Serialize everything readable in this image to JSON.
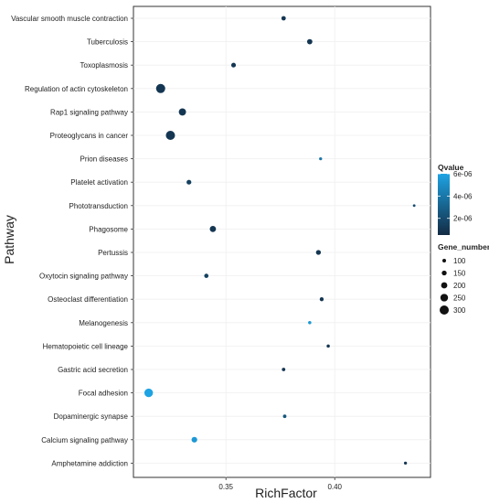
{
  "chart_data": {
    "type": "scatter",
    "title": "",
    "xlabel": "RichFactor",
    "ylabel": "Pathway",
    "xticks": [
      0.35,
      0.4
    ],
    "xtick_labels": [
      "0.35",
      "0.40"
    ],
    "xlim": [
      0.3075,
      0.444
    ],
    "grid": true,
    "categories": [
      "Vascular smooth muscle contraction",
      "Tuberculosis",
      "Toxoplasmosis",
      "Regulation of actin cytoskeleton",
      "Rap1 signaling pathway",
      "Proteoglycans in cancer",
      "Prion diseases",
      "Platelet activation",
      "Phototransduction",
      "Phagosome",
      "Pertussis",
      "Oxytocin signaling pathway",
      "Osteoclast differentiation",
      "Melanogenesis",
      "Hematopoietic cell lineage",
      "Gastric acid secretion",
      "Focal adhesion",
      "Dopaminergic synapse",
      "Calcium signaling pathway",
      "Amphetamine addiction"
    ],
    "points": [
      {
        "pathway": "Vascular smooth muscle contraction",
        "rich_factor": 0.3765,
        "gene_number": 130,
        "qvalue": 1e-06
      },
      {
        "pathway": "Tuberculosis",
        "rich_factor": 0.3885,
        "gene_number": 165,
        "qvalue": 1e-06
      },
      {
        "pathway": "Toxoplasmosis",
        "rich_factor": 0.3535,
        "gene_number": 140,
        "qvalue": 1e-06
      },
      {
        "pathway": "Regulation of actin cytoskeleton",
        "rich_factor": 0.32,
        "gene_number": 300,
        "qvalue": 1e-06
      },
      {
        "pathway": "Rap1 signaling pathway",
        "rich_factor": 0.33,
        "gene_number": 235,
        "qvalue": 1e-06
      },
      {
        "pathway": "Proteoglycans in cancer",
        "rich_factor": 0.3245,
        "gene_number": 300,
        "qvalue": 1e-06
      },
      {
        "pathway": "Prion diseases",
        "rich_factor": 0.3935,
        "gene_number": 70,
        "qvalue": 4e-06
      },
      {
        "pathway": "Platelet activation",
        "rich_factor": 0.333,
        "gene_number": 145,
        "qvalue": 1.5e-06
      },
      {
        "pathway": "Phototransduction",
        "rich_factor": 0.4365,
        "gene_number": 50,
        "qvalue": 2e-06
      },
      {
        "pathway": "Phagosome",
        "rich_factor": 0.344,
        "gene_number": 200,
        "qvalue": 1e-06
      },
      {
        "pathway": "Pertussis",
        "rich_factor": 0.3925,
        "gene_number": 150,
        "qvalue": 1e-06
      },
      {
        "pathway": "Oxytocin signaling pathway",
        "rich_factor": 0.341,
        "gene_number": 125,
        "qvalue": 1.5e-06
      },
      {
        "pathway": "Osteoclast differentiation",
        "rich_factor": 0.394,
        "gene_number": 110,
        "qvalue": 1e-06
      },
      {
        "pathway": "Melanogenesis",
        "rich_factor": 0.3885,
        "gene_number": 80,
        "qvalue": 5.5e-06
      },
      {
        "pathway": "Hematopoietic cell lineage",
        "rich_factor": 0.397,
        "gene_number": 80,
        "qvalue": 1e-06
      },
      {
        "pathway": "Gastric acid secretion",
        "rich_factor": 0.3765,
        "gene_number": 90,
        "qvalue": 1e-06
      },
      {
        "pathway": "Focal adhesion",
        "rich_factor": 0.3145,
        "gene_number": 280,
        "qvalue": 6e-06
      },
      {
        "pathway": "Dopaminergic synapse",
        "rich_factor": 0.377,
        "gene_number": 90,
        "qvalue": 2.5e-06
      },
      {
        "pathway": "Calcium signaling pathway",
        "rich_factor": 0.3355,
        "gene_number": 180,
        "qvalue": 5.5e-06
      },
      {
        "pathway": "Amphetamine addiction",
        "rich_factor": 0.4325,
        "gene_number": 70,
        "qvalue": 1e-06
      }
    ],
    "color_legend": {
      "title": "Qvalue",
      "tick_labels": [
        "6e-06",
        "4e-06",
        "2e-06"
      ],
      "tick_values": [
        6e-06,
        4e-06,
        2e-06
      ],
      "range": [
        5e-07,
        6e-06
      ],
      "low_color": "#132b43",
      "high_color": "#1ea3e3"
    },
    "size_legend": {
      "title": "Gene_number",
      "labels": [
        "100",
        "150",
        "200",
        "250",
        "300"
      ],
      "values": [
        100,
        150,
        200,
        250,
        300
      ]
    }
  }
}
